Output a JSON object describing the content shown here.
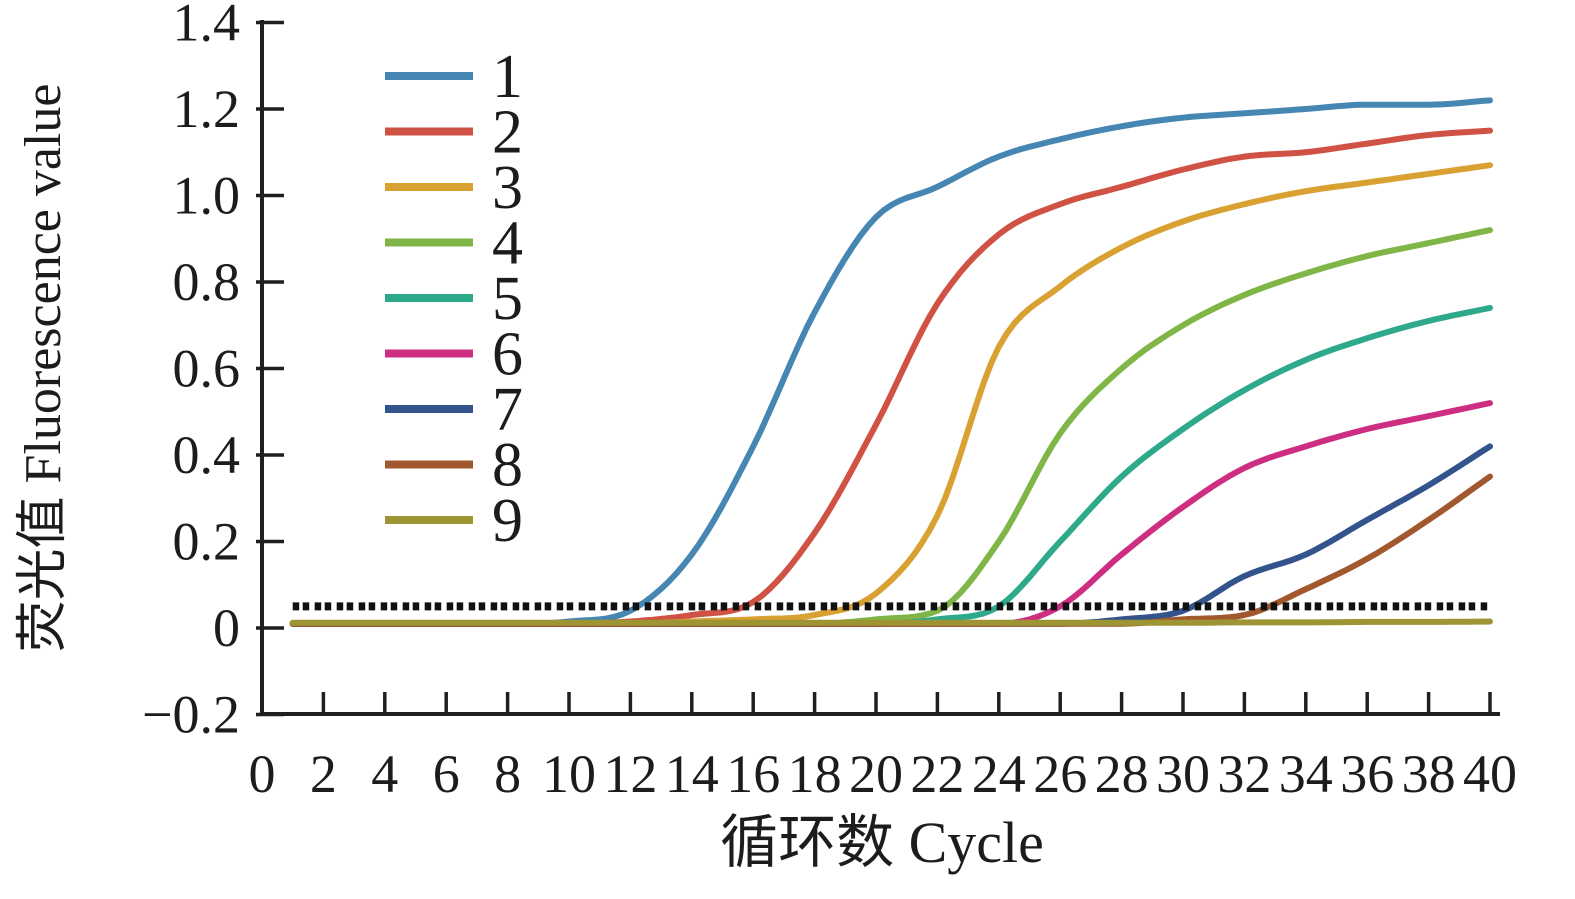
{
  "chart_data": {
    "type": "line",
    "title": "",
    "xlabel": "循环数 Cycle",
    "ylabel": "荧光值 Fluorescence value",
    "xlim": [
      0,
      40.6
    ],
    "ylim": [
      -0.2,
      1.4
    ],
    "grid": false,
    "legend_position": "upper-left-inside",
    "axis_color": "#1f1f1f",
    "background_color": "#ffffff",
    "x_ticks": [
      0,
      2,
      4,
      6,
      8,
      10,
      12,
      14,
      16,
      18,
      20,
      22,
      24,
      26,
      28,
      30,
      32,
      34,
      36,
      38,
      40
    ],
    "x_tick_labels": [
      "0",
      "2",
      "4",
      "6",
      "8",
      "10",
      "12",
      "14",
      "16",
      "18",
      "20",
      "22",
      "24",
      "26",
      "28",
      "30",
      "32",
      "34",
      "36",
      "38",
      "40"
    ],
    "y_ticks": [
      1.4,
      1.2,
      1.0,
      0.8,
      0.6,
      0.4,
      0.2,
      0,
      -0.2
    ],
    "y_tick_labels": [
      "1.4",
      "1.2",
      "1.0",
      "0.8",
      "0.6",
      "0.4",
      "0.2",
      "0",
      "−0.2"
    ],
    "threshold_line": {
      "value": 0.05,
      "style": "dotted",
      "color": "#111111"
    },
    "x": [
      1,
      2,
      4,
      6,
      8,
      10,
      12,
      14,
      16,
      18,
      20,
      22,
      24,
      26,
      28,
      30,
      32,
      34,
      36,
      38,
      40
    ],
    "series": [
      {
        "name": "1",
        "color": "#4587b2",
        "values": [
          0.01,
          0.01,
          0.01,
          0.01,
          0.01,
          0.015,
          0.04,
          0.17,
          0.42,
          0.73,
          0.95,
          1.02,
          1.09,
          1.13,
          1.16,
          1.18,
          1.19,
          1.2,
          1.21,
          1.21,
          1.22
        ]
      },
      {
        "name": "2",
        "color": "#cf5244",
        "values": [
          0.01,
          0.01,
          0.01,
          0.01,
          0.01,
          0.01,
          0.015,
          0.03,
          0.06,
          0.22,
          0.47,
          0.75,
          0.91,
          0.98,
          1.02,
          1.06,
          1.09,
          1.1,
          1.12,
          1.14,
          1.15
        ]
      },
      {
        "name": "3",
        "color": "#d9a032",
        "values": [
          0.01,
          0.01,
          0.01,
          0.01,
          0.01,
          0.01,
          0.01,
          0.015,
          0.02,
          0.03,
          0.08,
          0.26,
          0.65,
          0.79,
          0.88,
          0.94,
          0.98,
          1.01,
          1.03,
          1.05,
          1.07
        ]
      },
      {
        "name": "4",
        "color": "#7fb647",
        "values": [
          0.01,
          0.01,
          0.01,
          0.01,
          0.01,
          0.01,
          0.01,
          0.01,
          0.01,
          0.01,
          0.02,
          0.04,
          0.2,
          0.45,
          0.6,
          0.7,
          0.77,
          0.82,
          0.86,
          0.89,
          0.92
        ]
      },
      {
        "name": "5",
        "color": "#2fa98b",
        "values": [
          0.01,
          0.01,
          0.01,
          0.01,
          0.01,
          0.01,
          0.01,
          0.01,
          0.01,
          0.01,
          0.01,
          0.02,
          0.05,
          0.2,
          0.35,
          0.46,
          0.55,
          0.62,
          0.67,
          0.71,
          0.74
        ]
      },
      {
        "name": "6",
        "color": "#ce2e81",
        "values": [
          0.01,
          0.01,
          0.01,
          0.01,
          0.01,
          0.01,
          0.01,
          0.01,
          0.01,
          0.01,
          0.01,
          0.01,
          0.01,
          0.05,
          0.17,
          0.28,
          0.37,
          0.42,
          0.46,
          0.49,
          0.52
        ]
      },
      {
        "name": "7",
        "color": "#33538c",
        "values": [
          0.01,
          0.01,
          0.01,
          0.01,
          0.01,
          0.01,
          0.01,
          0.01,
          0.01,
          0.01,
          0.01,
          0.01,
          0.01,
          0.01,
          0.02,
          0.04,
          0.12,
          0.17,
          0.25,
          0.33,
          0.42
        ]
      },
      {
        "name": "8",
        "color": "#a2582e",
        "values": [
          0.01,
          0.01,
          0.01,
          0.01,
          0.01,
          0.01,
          0.01,
          0.01,
          0.01,
          0.01,
          0.01,
          0.01,
          0.01,
          0.01,
          0.01,
          0.02,
          0.03,
          0.09,
          0.16,
          0.25,
          0.35
        ]
      },
      {
        "name": "9",
        "color": "#9d9434",
        "values": [
          0.012,
          0.012,
          0.012,
          0.012,
          0.012,
          0.012,
          0.012,
          0.012,
          0.012,
          0.012,
          0.012,
          0.012,
          0.012,
          0.012,
          0.012,
          0.012,
          0.013,
          0.013,
          0.014,
          0.014,
          0.015
        ]
      }
    ]
  }
}
